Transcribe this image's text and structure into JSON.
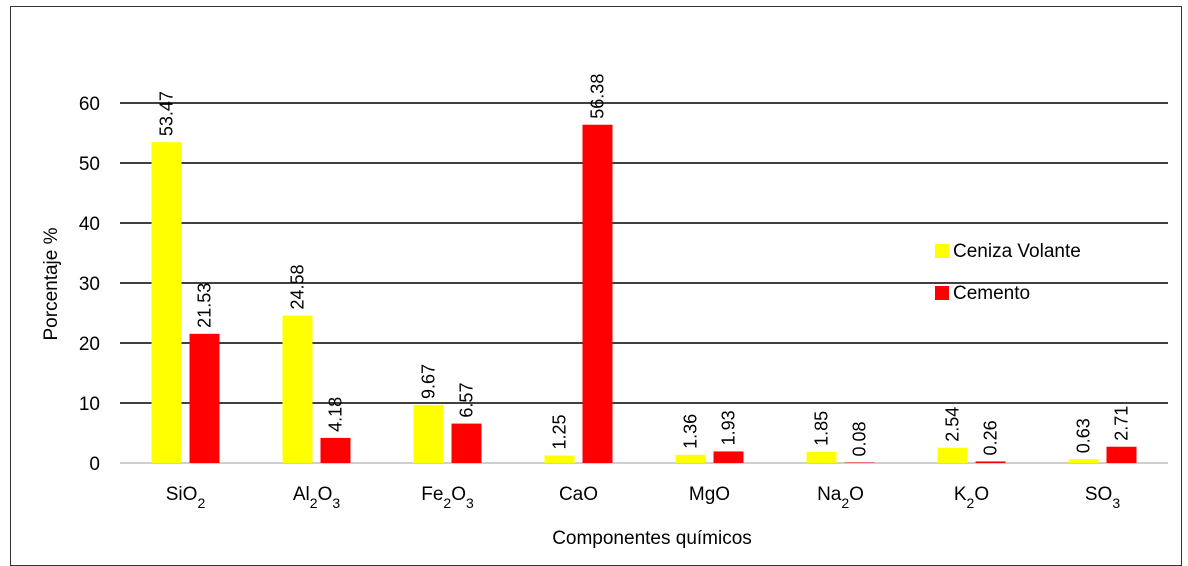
{
  "chart_data": {
    "type": "bar",
    "categories": [
      {
        "base": "SiO",
        "sub": "2",
        "tail": ""
      },
      {
        "base": "Al",
        "sub": "2",
        "mid": "O",
        "sub2": "3"
      },
      {
        "base": "Fe",
        "sub": "2",
        "mid": "O",
        "sub2": "3"
      },
      {
        "base": "CaO",
        "sub": "",
        "tail": ""
      },
      {
        "base": "MgO",
        "sub": "",
        "tail": ""
      },
      {
        "base": "Na",
        "sub": "2",
        "tail": "O"
      },
      {
        "base": "K",
        "sub": "2",
        "tail": "O"
      },
      {
        "base": "SO",
        "sub": "3",
        "tail": ""
      }
    ],
    "category_text": [
      "SiO2",
      "Al2O3",
      "Fe2O3",
      "CaO",
      "MgO",
      "Na2O",
      "K2O",
      "SO3"
    ],
    "series": [
      {
        "name": "Ceniza Volante",
        "color": "#FFFF00",
        "values": [
          53.47,
          24.58,
          9.67,
          1.25,
          1.36,
          1.85,
          2.54,
          0.63
        ],
        "labels": [
          "53.47",
          "24.58",
          "9.67",
          "1.25",
          "1.36",
          "1.85",
          "2.54",
          "0.63"
        ]
      },
      {
        "name": "Cemento",
        "color": "#FF0000",
        "values": [
          21.53,
          4.18,
          6.57,
          56.38,
          1.93,
          0.08,
          0.26,
          2.71
        ],
        "labels": [
          "21.53",
          "4.18",
          "6.57",
          "56.38",
          "1.93",
          "0.08",
          "0.26",
          "2.71"
        ]
      }
    ],
    "xlabel": "Componentes químicos",
    "ylabel": "Porcentaje %",
    "ylim": [
      0,
      60
    ],
    "yticks": [
      "0",
      "10",
      "20",
      "30",
      "40",
      "50",
      "60"
    ],
    "grid": true,
    "legend_position": "right"
  }
}
